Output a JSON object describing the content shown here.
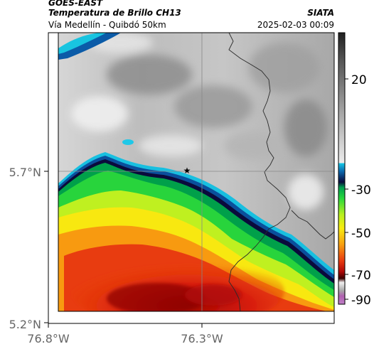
{
  "header": {
    "satellite": "GOES-EAST",
    "product": "Temperatura de Brillo CH13",
    "region": "Vía Medellín - Quibdó 50km",
    "organization": "SIATA",
    "timestamp": "2025-02-03 00:09"
  },
  "map": {
    "lat_ticks": [
      "5.7°N",
      "5.2°N"
    ],
    "lon_ticks": [
      "76.8°W",
      "76.3°W"
    ],
    "marker": "star-marker"
  },
  "colorbar": {
    "ticks": [
      "20",
      "-30",
      "-50",
      "-70",
      "-90"
    ]
  },
  "colors": {
    "frame": "#000000",
    "grid": "#888888",
    "tick_label": "#666666"
  }
}
